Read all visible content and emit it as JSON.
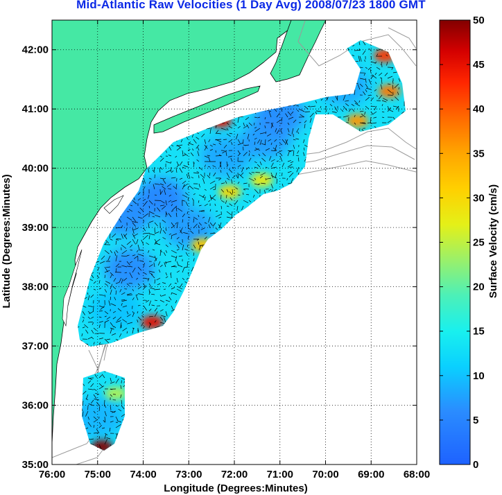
{
  "chart_data": {
    "type": "heatmap",
    "title": "Mid-Atlantic Raw Velocities (1 Day Avg) 2008/07/23 1800 GMT",
    "xlabel": "Longitude (Degrees:Minutes)",
    "ylabel": "Latitude (Degrees:Minutes)",
    "colorbar_label": "Surface Velocity (cm/s)",
    "x_ticks": [
      {
        "value": -76,
        "label": "76:00"
      },
      {
        "value": -75,
        "label": "75:00"
      },
      {
        "value": -74,
        "label": "74:00"
      },
      {
        "value": -73,
        "label": "73:00"
      },
      {
        "value": -72,
        "label": "72:00"
      },
      {
        "value": -71,
        "label": "71:00"
      },
      {
        "value": -70,
        "label": "70:00"
      },
      {
        "value": -69,
        "label": "69:00"
      },
      {
        "value": -68,
        "label": "68:00"
      }
    ],
    "y_ticks": [
      {
        "value": 35,
        "label": "35:00"
      },
      {
        "value": 36,
        "label": "36:00"
      },
      {
        "value": 37,
        "label": "37:00"
      },
      {
        "value": 38,
        "label": "38:00"
      },
      {
        "value": 39,
        "label": "39:00"
      },
      {
        "value": 40,
        "label": "40:00"
      },
      {
        "value": 41,
        "label": "41:00"
      },
      {
        "value": 42,
        "label": "42:00"
      }
    ],
    "colorbar_ticks": [
      0,
      5,
      10,
      15,
      20,
      25,
      30,
      35,
      40,
      45,
      50
    ],
    "xlim": [
      -76,
      -68
    ],
    "ylim": [
      35,
      42.5
    ],
    "clim": [
      0,
      50
    ],
    "grid": "dotted",
    "colormap": "jet",
    "colors": {
      "land": "#45e8a4",
      "title": "#0a28e6",
      "vector": "#000000",
      "bathymetry": "#9a9a9a"
    },
    "velocity_regions": [
      {
        "lon": -74.3,
        "lat": 38.3,
        "speed": 6
      },
      {
        "lon": -73.6,
        "lat": 39.5,
        "speed": 5
      },
      {
        "lon": -74.4,
        "lat": 39.2,
        "speed": 6
      },
      {
        "lon": -73.0,
        "lat": 39.0,
        "speed": 7
      },
      {
        "lon": -72.2,
        "lat": 40.2,
        "speed": 8
      },
      {
        "lon": -71.3,
        "lat": 40.5,
        "speed": 7
      },
      {
        "lon": -71.0,
        "lat": 40.9,
        "speed": 6
      },
      {
        "lon": -69.6,
        "lat": 41.4,
        "speed": 8
      },
      {
        "lon": -74.6,
        "lat": 37.6,
        "speed": 10
      },
      {
        "lon": -75.0,
        "lat": 35.8,
        "speed": 9
      },
      {
        "lon": -72.3,
        "lat": 40.8,
        "speed": 45
      },
      {
        "lon": -72.1,
        "lat": 39.6,
        "speed": 30
      },
      {
        "lon": -72.7,
        "lat": 38.7,
        "speed": 32
      },
      {
        "lon": -73.8,
        "lat": 37.4,
        "speed": 45
      },
      {
        "lon": -74.9,
        "lat": 35.3,
        "speed": 50
      },
      {
        "lon": -68.6,
        "lat": 41.3,
        "speed": 38
      },
      {
        "lon": -68.7,
        "lat": 41.9,
        "speed": 42
      },
      {
        "lon": -71.4,
        "lat": 39.8,
        "speed": 28
      },
      {
        "lon": -69.3,
        "lat": 40.8,
        "speed": 36
      },
      {
        "lon": -74.6,
        "lat": 36.2,
        "speed": 24
      }
    ]
  }
}
